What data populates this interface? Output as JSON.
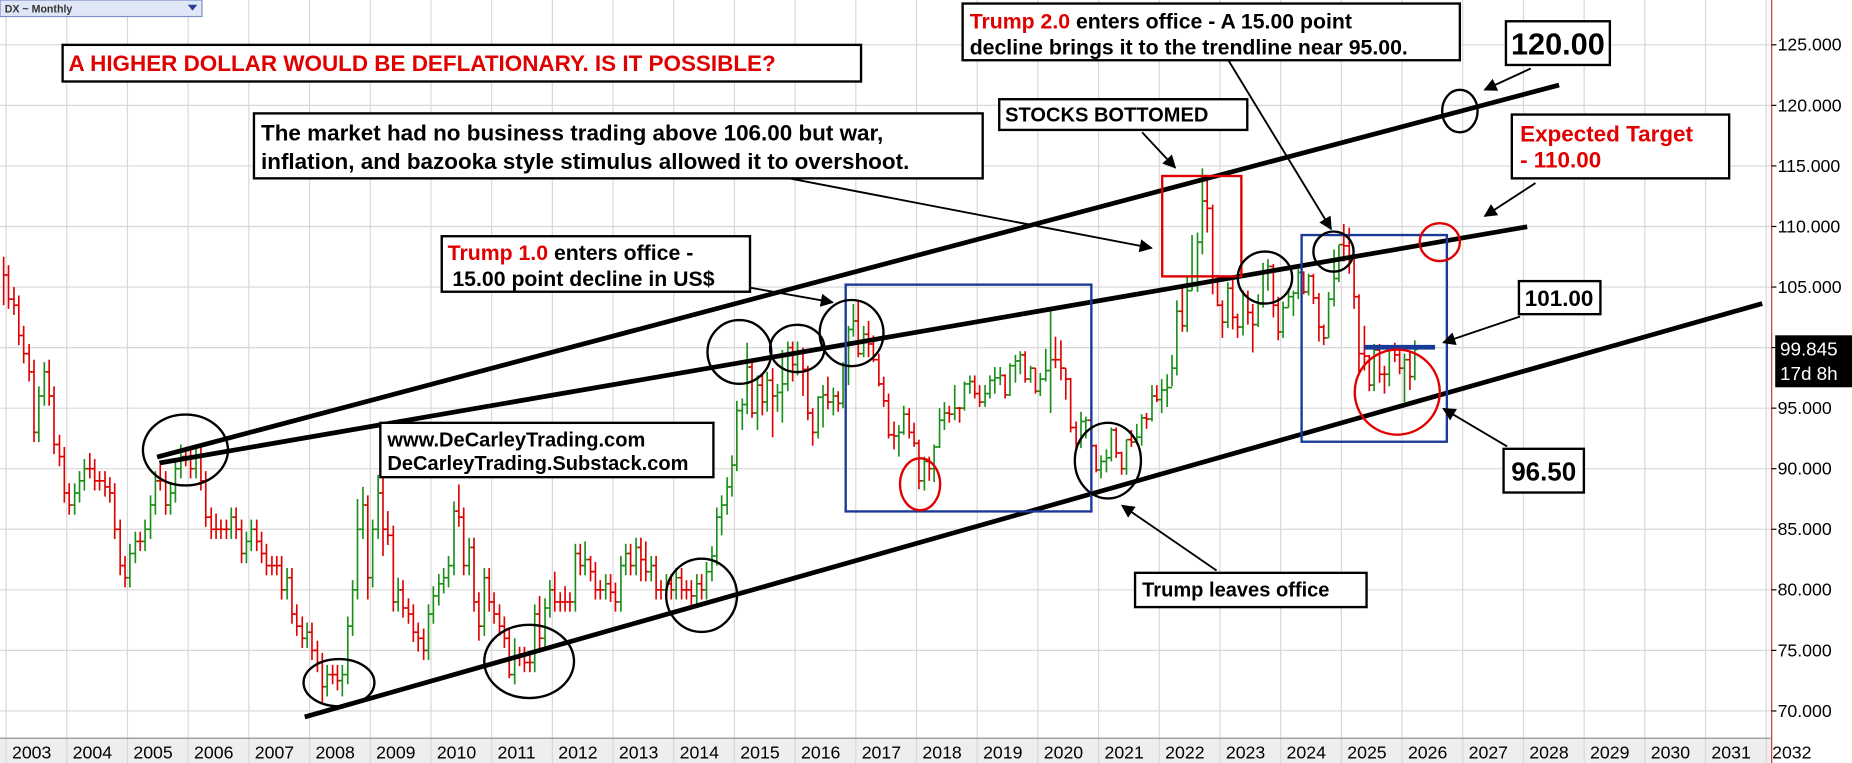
{
  "chart_data": {
    "type": "ohlc",
    "symbol": "DX ~ Monthly",
    "x": [
      2002.96,
      2003.04,
      2003.13,
      2003.21,
      2003.29,
      2003.38,
      2003.46,
      2003.54,
      2003.63,
      2003.71,
      2003.79,
      2003.88,
      2003.96,
      2004.04,
      2004.13,
      2004.21,
      2004.29,
      2004.38,
      2004.46,
      2004.54,
      2004.63,
      2004.71,
      2004.79,
      2004.88,
      2004.96,
      2005.04,
      2005.13,
      2005.21,
      2005.29,
      2005.38,
      2005.46,
      2005.54,
      2005.63,
      2005.71,
      2005.79,
      2005.88,
      2005.96,
      2006.04,
      2006.13,
      2006.21,
      2006.29,
      2006.38,
      2006.46,
      2006.54,
      2006.63,
      2006.71,
      2006.79,
      2006.88,
      2006.96,
      2007.04,
      2007.13,
      2007.21,
      2007.29,
      2007.38,
      2007.46,
      2007.54,
      2007.63,
      2007.71,
      2007.79,
      2007.88,
      2007.96,
      2008.04,
      2008.13,
      2008.21,
      2008.29,
      2008.38,
      2008.46,
      2008.54,
      2008.63,
      2008.71,
      2008.79,
      2008.88,
      2008.96,
      2009.04,
      2009.13,
      2009.21,
      2009.29,
      2009.38,
      2009.46,
      2009.54,
      2009.63,
      2009.71,
      2009.79,
      2009.88,
      2009.96,
      2010.04,
      2010.13,
      2010.21,
      2010.29,
      2010.38,
      2010.46,
      2010.54,
      2010.63,
      2010.71,
      2010.79,
      2010.88,
      2010.96,
      2011.04,
      2011.13,
      2011.21,
      2011.29,
      2011.38,
      2011.46,
      2011.54,
      2011.63,
      2011.71,
      2011.79,
      2011.88,
      2011.96,
      2012.04,
      2012.13,
      2012.21,
      2012.29,
      2012.38,
      2012.46,
      2012.54,
      2012.63,
      2012.71,
      2012.79,
      2012.88,
      2012.96,
      2013.04,
      2013.13,
      2013.21,
      2013.29,
      2013.38,
      2013.46,
      2013.54,
      2013.63,
      2013.71,
      2013.79,
      2013.88,
      2013.96,
      2014.04,
      2014.13,
      2014.21,
      2014.29,
      2014.38,
      2014.46,
      2014.54,
      2014.63,
      2014.71,
      2014.79,
      2014.88,
      2014.96,
      2015.04,
      2015.13,
      2015.21,
      2015.29,
      2015.38,
      2015.46,
      2015.54,
      2015.63,
      2015.71,
      2015.79,
      2015.88,
      2015.96,
      2016.04,
      2016.13,
      2016.21,
      2016.29,
      2016.38,
      2016.46,
      2016.54,
      2016.63,
      2016.71,
      2016.79,
      2016.88,
      2016.96,
      2017.04,
      2017.13,
      2017.21,
      2017.29,
      2017.38,
      2017.46,
      2017.54,
      2017.63,
      2017.71,
      2017.79,
      2017.88,
      2017.96,
      2018.04,
      2018.13,
      2018.21,
      2018.29,
      2018.38,
      2018.46,
      2018.54,
      2018.63,
      2018.71,
      2018.79,
      2018.88,
      2018.96,
      2019.04,
      2019.13,
      2019.21,
      2019.29,
      2019.38,
      2019.46,
      2019.54,
      2019.63,
      2019.71,
      2019.79,
      2019.88,
      2019.96,
      2020.04,
      2020.13,
      2020.21,
      2020.29,
      2020.38,
      2020.46,
      2020.54,
      2020.63,
      2020.71,
      2020.79,
      2020.88,
      2020.96,
      2021.04,
      2021.13,
      2021.21,
      2021.29,
      2021.38,
      2021.46,
      2021.54,
      2021.63,
      2021.71,
      2021.79,
      2021.88,
      2021.96,
      2022.04,
      2022.13,
      2022.21,
      2022.29,
      2022.38,
      2022.46,
      2022.54,
      2022.63,
      2022.71,
      2022.79,
      2022.88,
      2022.96,
      2023.04,
      2023.13,
      2023.21,
      2023.29,
      2023.38,
      2023.46,
      2023.54,
      2023.63,
      2023.71,
      2023.79,
      2023.88,
      2023.96,
      2024.04,
      2024.13,
      2024.21,
      2024.29,
      2024.38,
      2024.46,
      2024.54,
      2024.63,
      2024.71,
      2024.79,
      2024.88,
      2024.96,
      2025.04,
      2025.13,
      2025.21,
      2025.29,
      2025.38,
      2025.46,
      2025.54,
      2025.63,
      2025.71,
      2025.79,
      2025.88,
      2025.96,
      2026.04,
      2026.13,
      2026.21
    ],
    "high": [
      107.5,
      106.8,
      105,
      104.3,
      101.8,
      100.3,
      99,
      96.8,
      98.8,
      99,
      96.8,
      92.8,
      91.8,
      88.8,
      88.8,
      89.8,
      90.8,
      91.3,
      90.8,
      89.8,
      89.8,
      89.3,
      88.8,
      85.8,
      82.8,
      83.8,
      84.8,
      84.8,
      85.8,
      87.8,
      89.8,
      90.3,
      89.8,
      88.8,
      90.8,
      92,
      91.8,
      91.8,
      91.8,
      91.8,
      89.8,
      86.8,
      86.3,
      85.8,
      85.8,
      86.8,
      86.8,
      85.8,
      84.8,
      85.8,
      85.8,
      84.8,
      83.8,
      82.8,
      82.8,
      82.8,
      81.8,
      81.8,
      78.8,
      77.8,
      77.3,
      77.3,
      75.8,
      74.8,
      73.8,
      73.8,
      73.8,
      73.8,
      77.8,
      80.8,
      87.5,
      88.5,
      87.8,
      85.8,
      89.5,
      89.3,
      86.5,
      85.3,
      81,
      80.8,
      79.3,
      78.8,
      77.3,
      76.8,
      78.8,
      80.3,
      81.3,
      81.8,
      82.8,
      87.3,
      88.7,
      86.8,
      84.3,
      84.3,
      79.8,
      81.8,
      81.8,
      79.8,
      78.8,
      77.8,
      76.8,
      76,
      75.3,
      75.3,
      74.8,
      78.8,
      79.5,
      79.3,
      80.8,
      81.5,
      79.8,
      80.3,
      79.8,
      83.8,
      83.8,
      84,
      82.8,
      82.3,
      80.8,
      81.3,
      81.3,
      80.6,
      82.8,
      83.8,
      83.8,
      84.3,
      84.3,
      84,
      82.8,
      82.8,
      80.8,
      81.3,
      81.3,
      81.8,
      81.8,
      80.8,
      80.8,
      81.3,
      81.3,
      82.3,
      83.6,
      86.8,
      87.8,
      89.3,
      91.1,
      95.6,
      95.8,
      100.4,
      98.8,
      97.7,
      97.8,
      98,
      98.3,
      97,
      99.8,
      100.5,
      100.5,
      100.5,
      100,
      98.5,
      95,
      96,
      96.9,
      97.6,
      96.7,
      96.4,
      98.8,
      101.8,
      103.6,
      103.8,
      101.8,
      102.2,
      101,
      99.5,
      97.6,
      96.2,
      93.9,
      93.6,
      95.2,
      95,
      93.8,
      92.4,
      91,
      91,
      92,
      95,
      95.5,
      95.2,
      96.9,
      95.1,
      97.2,
      97.7,
      97.7,
      96.9,
      96.9,
      97.7,
      98.4,
      98.4,
      97.8,
      98.7,
      99.4,
      99.7,
      99.7,
      98.5,
      98.3,
      97.9,
      99.9,
      103,
      100.9,
      100.6,
      98.3,
      97.5,
      93.9,
      94.7,
      94.3,
      94.3,
      92,
      91.1,
      91.6,
      93.4,
      93.4,
      91.4,
      92.4,
      93.2,
      93.7,
      94.5,
      94.6,
      96.9,
      96.9,
      97.4,
      97.8,
      99.4,
      103.9,
      105,
      105.8,
      109.3,
      109.5,
      114.8,
      113.9,
      111.8,
      106,
      103.9,
      105.4,
      105.9,
      102.8,
      104.7,
      104.7,
      103.6,
      104.4,
      107,
      107.3,
      106.9,
      104.2,
      103.8,
      104.9,
      104.7,
      106.5,
      106.3,
      106.1,
      106.1,
      104.5,
      101.9,
      104.6,
      108.1,
      108.5,
      110.2,
      109.9,
      107.6,
      104.4,
      101.8,
      99.4,
      100.3,
      100.3,
      98.5,
      100.2,
      100.4,
      100,
      99.5,
      99.7,
      100.6
    ],
    "low": [
      103.5,
      103.2,
      102.7,
      100.2,
      98.7,
      97.2,
      92.2,
      92.2,
      95.2,
      95.2,
      91.2,
      90.2,
      87.2,
      86.2,
      86.2,
      87.2,
      88.2,
      89.2,
      88.2,
      88.2,
      87.7,
      87.2,
      84.2,
      81.2,
      80.2,
      80.2,
      82.2,
      83.2,
      83.2,
      84.2,
      86.2,
      88.2,
      86.2,
      86.2,
      87.2,
      89.2,
      90.2,
      89.2,
      89.2,
      88.2,
      85.2,
      84.2,
      84.2,
      84.2,
      84.2,
      84.2,
      84.2,
      82.2,
      82.2,
      83.2,
      83.2,
      82.2,
      81.2,
      81.2,
      81.2,
      79.2,
      79.2,
      77.2,
      76.2,
      75.2,
      75.2,
      74.2,
      73.2,
      70.7,
      71.2,
      72.2,
      71.7,
      71.2,
      72.2,
      76.2,
      79.2,
      84.2,
      79.2,
      80.2,
      84.2,
      82.8,
      83.7,
      78.2,
      78.2,
      77.7,
      77.2,
      75.7,
      74.9,
      74.2,
      74.2,
      77.2,
      78.7,
      79.7,
      80.2,
      81.2,
      85.2,
      81.2,
      81.2,
      78.2,
      75.8,
      76.2,
      78.2,
      77.2,
      76.2,
      75.2,
      72.7,
      72.2,
      73.7,
      73.2,
      73.2,
      73.2,
      75.2,
      75.2,
      77.7,
      78.2,
      78.2,
      78.2,
      78.2,
      78.2,
      81.2,
      81.2,
      80.7,
      79.2,
      79.2,
      79.2,
      79,
      78.2,
      78.2,
      81.2,
      81.2,
      81.2,
      80.7,
      80.7,
      80.7,
      79.2,
      79.2,
      79.2,
      79.2,
      79.2,
      79.2,
      79.2,
      78.7,
      78.7,
      79.2,
      79.2,
      80.7,
      82,
      84.5,
      86.2,
      87.7,
      89.8,
      93.2,
      94.5,
      94.2,
      93.2,
      94.4,
      94.7,
      92.6,
      94.7,
      93.8,
      96.4,
      97.2,
      97.7,
      96,
      94,
      91.9,
      92.5,
      93.4,
      94.9,
      94.4,
      94.7,
      95,
      96.9,
      100.9,
      99.2,
      99.2,
      99.2,
      98.8,
      96.8,
      95.1,
      92.5,
      91.6,
      91,
      92.8,
      92.5,
      91.8,
      88.3,
      88.2,
      89,
      88.9,
      91.7,
      93.2,
      93.8,
      94,
      93.8,
      94.8,
      96.2,
      95.8,
      95.1,
      95.1,
      95.8,
      96.2,
      96.9,
      95.8,
      96,
      97.1,
      97.8,
      97.1,
      97.1,
      96.2,
      96,
      97.2,
      94.6,
      98.3,
      97.3,
      95.7,
      93,
      91.7,
      91.7,
      92.5,
      91.8,
      89.7,
      89.2,
      89.7,
      90.6,
      90.9,
      89.5,
      89.5,
      91.8,
      92,
      91.9,
      93.3,
      93.9,
      95.5,
      94.6,
      95.1,
      96.8,
      97.7,
      101.3,
      101.3,
      104.7,
      104.6,
      107.7,
      109.5,
      104.4,
      103.4,
      100.8,
      101.6,
      101.5,
      100.8,
      101,
      101.9,
      99.6,
      101.7,
      103.3,
      104.7,
      102.5,
      100.6,
      100.8,
      103.3,
      102.6,
      104,
      104.4,
      104.3,
      103.6,
      100.5,
      100.2,
      100.8,
      103.4,
      105.4,
      107.1,
      106.1,
      103.2,
      97.9,
      98.1,
      96.4,
      96.4,
      97.1,
      96.2,
      96.8,
      98.8,
      97.8,
      95.5,
      96.5,
      97.3
    ],
    "close": [
      106,
      104,
      103.5,
      101,
      99.5,
      98,
      93,
      96,
      98,
      96,
      92,
      91,
      88,
      87,
      88,
      89,
      90,
      90,
      89,
      89,
      88.5,
      88,
      85,
      82,
      81,
      83,
      84,
      84,
      85,
      87,
      89,
      89,
      87,
      88,
      90,
      91,
      91,
      90,
      91,
      89,
      86,
      85,
      85,
      85,
      85,
      86,
      85,
      83,
      84,
      85,
      84,
      83,
      82,
      82,
      82,
      80,
      81,
      78,
      77,
      76,
      76.5,
      75,
      74,
      72,
      73,
      73,
      72.5,
      73,
      77,
      80,
      85,
      87,
      81,
      85,
      88,
      85,
      84.5,
      79,
      80,
      78.5,
      78,
      76.5,
      76,
      75,
      78,
      79.5,
      80.5,
      81,
      82,
      86.5,
      86,
      82,
      83.5,
      79,
      77,
      81,
      79,
      78,
      77,
      76,
      73,
      74.5,
      74.5,
      74,
      74,
      78,
      76,
      78.5,
      80,
      79,
      79,
      79,
      79,
      83,
      82,
      82.5,
      81.5,
      80,
      80,
      80.5,
      79.8,
      79,
      82,
      83,
      82,
      83.5,
      82.5,
      81.5,
      82,
      80,
      80,
      80.5,
      80,
      81,
      80,
      80,
      79.5,
      80.5,
      80,
      81.5,
      82.8,
      86,
      87,
      88.5,
      90.3,
      94.8,
      95.3,
      98.4,
      94.6,
      96.9,
      95.5,
      97.3,
      96,
      96.3,
      97,
      100,
      98.6,
      99.6,
      98.2,
      94.6,
      93,
      95.9,
      96.1,
      95.5,
      96,
      95.4,
      98.5,
      101.5,
      102.2,
      99.5,
      101.1,
      100.3,
      99,
      97,
      95.6,
      92.8,
      92.7,
      93,
      94.5,
      93,
      92.1,
      89,
      90.6,
      90,
      91.8,
      94,
      94.6,
      94.5,
      95,
      95,
      97,
      97.2,
      96.2,
      95.5,
      96.2,
      97.3,
      97.5,
      97.7,
      96.1,
      98.5,
      98.9,
      99.4,
      97.4,
      98.3,
      96.4,
      97.4,
      98.1,
      99,
      99,
      98.3,
      97.4,
      93.4,
      92.1,
      93.9,
      94,
      91.9,
      89.9,
      90.6,
      90.9,
      93.2,
      91.3,
      90,
      92.4,
      92.2,
      92.6,
      94.2,
      94.1,
      96,
      95.7,
      96.5,
      96.7,
      98.3,
      103,
      101.8,
      104.7,
      105.9,
      108.7,
      112.1,
      111.5,
      105.9,
      103.5,
      102.1,
      104.9,
      102.5,
      101.7,
      104.3,
      102.9,
      101.9,
      103.6,
      106.2,
      106.7,
      103.5,
      101.3,
      103.3,
      104.2,
      104.5,
      106.2,
      104.6,
      105.9,
      104.1,
      101.7,
      100.8,
      104,
      105.7,
      108.5,
      108.4,
      107.6,
      104.2,
      99.5,
      99.3,
      96.9,
      99.8,
      97.8,
      97.8,
      99.8,
      99.4,
      98.3,
      99,
      97.6,
      99.845
    ],
    "up_color": "#1a8f1a",
    "down_color": "#e00000",
    "countdown": "17d 8h",
    "xlim": [
      2002.9,
      2032.09
    ],
    "xticks": [
      2003,
      2004,
      2005,
      2006,
      2007,
      2008,
      2009,
      2010,
      2011,
      2012,
      2013,
      2014,
      2015,
      2016,
      2017,
      2018,
      2019,
      2020,
      2021,
      2022,
      2023,
      2024,
      2025,
      2026,
      2027,
      2028,
      2029,
      2030,
      2031,
      2032
    ],
    "ylim": [
      67.75,
      128.7
    ],
    "yticks": [
      {
        "value": 70,
        "label": "70.000"
      },
      {
        "value": 75,
        "label": "75.000"
      },
      {
        "value": 80,
        "label": "80.000"
      },
      {
        "value": 85,
        "label": "85.000"
      },
      {
        "value": 90,
        "label": "90.000"
      },
      {
        "value": 95,
        "label": "95.000"
      },
      {
        "value": 100,
        "label": "100.000"
      },
      {
        "value": 105,
        "label": "105.000"
      },
      {
        "value": 110,
        "label": "110.000"
      },
      {
        "value": 115,
        "label": "115.000"
      },
      {
        "value": 120,
        "label": "120.000"
      },
      {
        "value": 125,
        "label": "125.000"
      }
    ],
    "grid": true,
    "annotations": {
      "headline": "A HIGHER DOLLAR WOULD BE DEFLATIONARY. IS IT POSSIBLE?",
      "trump2": [
        "Trump 2.0",
        " enters office - A 15.00 point",
        "decline brings it to the trendline near 95.00."
      ],
      "level_120": "120.00",
      "stocks": "STOCKS BOTTOMED",
      "overshoot": [
        "The market had no business trading above 106.00 but war,",
        "inflation, and bazooka style stimulus allowed it to overshoot."
      ],
      "target": [
        "Expected Target",
        "- 110.00"
      ],
      "trump1": [
        "Trump 1.0",
        " enters office -",
        "15.00 point decline in US$"
      ],
      "level_101": "101.00",
      "websites": [
        "www.DeCarleyTrading.com",
        "DeCarleyTrading.Substack.com"
      ],
      "level_9650": "96.50",
      "leaves": "Trump leaves office"
    }
  }
}
